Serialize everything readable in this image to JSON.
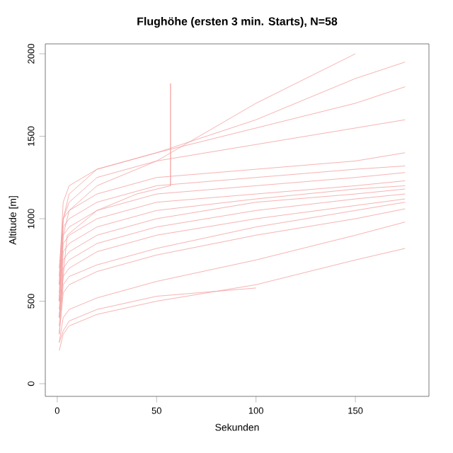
{
  "chart_data": {
    "type": "line",
    "title": "Flughöhe (ersten 3 min. Starts), N=58",
    "xlabel": "Sekunden",
    "ylabel": "Altitude [m]",
    "x": [
      1,
      3,
      6,
      20,
      50,
      100,
      150,
      175
    ],
    "xlim": [
      -6,
      187
    ],
    "ylim": [
      -77,
      2060
    ],
    "xticks": [
      0,
      50,
      100,
      150
    ],
    "yticks": [
      0,
      500,
      1000,
      1500,
      2000
    ],
    "grid": false,
    "marker": "none",
    "line_style": "solid",
    "series": [
      {
        "color": "#f4a0a0",
        "values": [
          200,
          300,
          350,
          420,
          500,
          600,
          750,
          820
        ]
      },
      {
        "color": "#f4a0a0",
        "values": [
          250,
          400,
          450,
          520,
          620,
          750,
          900,
          980
        ]
      },
      {
        "color": "#f4a0a0",
        "values": [
          300,
          550,
          600,
          680,
          780,
          900,
          1000,
          1060
        ]
      },
      {
        "color": "#f4a0a0",
        "values": [
          300,
          600,
          650,
          720,
          820,
          950,
          1050,
          1100
        ]
      },
      {
        "color": "#f4a0a0",
        "values": [
          350,
          650,
          700,
          800,
          900,
          1000,
          1080,
          1120
        ]
      },
      {
        "color": "#f4a0a0",
        "values": [
          400,
          700,
          750,
          850,
          950,
          1050,
          1120,
          1150
        ]
      },
      {
        "color": "#f4a0a0",
        "values": [
          400,
          750,
          800,
          900,
          1000,
          1100,
          1150,
          1180
        ]
      },
      {
        "color": "#f4a0a0",
        "values": [
          450,
          800,
          850,
          950,
          1050,
          1120,
          1180,
          1200
        ]
      },
      {
        "color": "#f4a0a0",
        "values": [
          500,
          850,
          900,
          1000,
          1100,
          1150,
          1200,
          1230
        ]
      },
      {
        "color": "#f4a0a0",
        "values": [
          500,
          900,
          950,
          1050,
          1150,
          1200,
          1250,
          1280
        ]
      },
      {
        "color": "#f4a0a0",
        "values": [
          550,
          950,
          1000,
          1100,
          1200,
          1250,
          1300,
          1320
        ]
      },
      {
        "color": "#f4a0a0",
        "values": [
          600,
          1000,
          1050,
          1150,
          1250,
          1300,
          1350,
          1400
        ]
      },
      {
        "color": "#f4a0a0",
        "values": [
          600,
          1000,
          1100,
          1250,
          1350,
          1450,
          1550,
          1600
        ]
      },
      {
        "color": "#f4a0a0",
        "values": [
          650,
          1100,
          1200,
          1300,
          1400,
          1550,
          1700,
          1800
        ]
      },
      {
        "color": "#f4a0a0",
        "values": [
          700,
          1000,
          1150,
          1300,
          1400,
          1600,
          1850,
          1950
        ]
      },
      {
        "color": "#f4a0a0",
        "values": [
          500,
          900,
          1050,
          1200,
          1350,
          1700,
          2000,
          null
        ]
      },
      {
        "color": "#f4a0a0",
        "x": [
          1,
          5,
          20,
          40,
          57,
          57,
          57
        ],
        "values": [
          400,
          900,
          1050,
          1150,
          1200,
          1820,
          1200
        ]
      },
      {
        "color": "#f4a0a0",
        "values": [
          250,
          320,
          380,
          450,
          530,
          580,
          null,
          null
        ]
      }
    ]
  }
}
